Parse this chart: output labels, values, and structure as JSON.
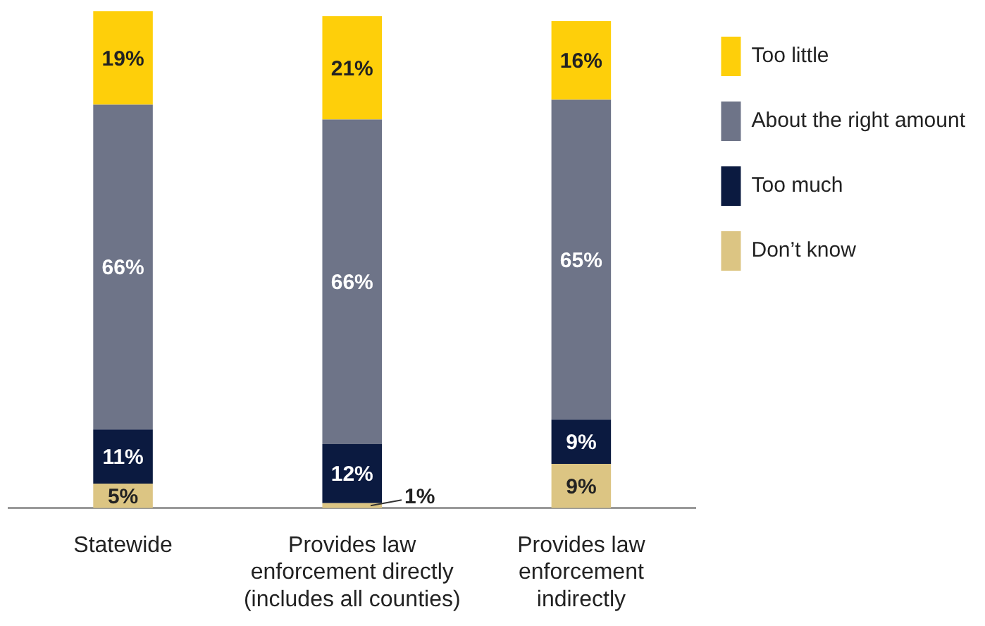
{
  "chart_data": {
    "type": "bar",
    "stacked": true,
    "legend": "right",
    "grid": false,
    "categories": [
      "Statewide",
      "Provides law\nenforcement directly\n(includes all counties)",
      "Provides law\nenforcement\nindirectly"
    ],
    "series": [
      {
        "name": "Don’t know",
        "color": "#dcc583",
        "values": [
          5,
          1,
          9
        ],
        "value_labels": [
          "5%",
          "1%",
          "9%"
        ]
      },
      {
        "name": "Too much",
        "color": "#0b1a40",
        "values": [
          11,
          12,
          9
        ],
        "value_labels": [
          "11%",
          "12%",
          "9%"
        ]
      },
      {
        "name": "About the right amount",
        "color": "#6e7488",
        "values": [
          66,
          66,
          65
        ],
        "value_labels": [
          "66%",
          "66%",
          "65%"
        ]
      },
      {
        "name": "Too little",
        "color": "#fecf0a",
        "values": [
          19,
          21,
          16
        ],
        "value_labels": [
          "19%",
          "21%",
          "16%"
        ]
      }
    ]
  }
}
